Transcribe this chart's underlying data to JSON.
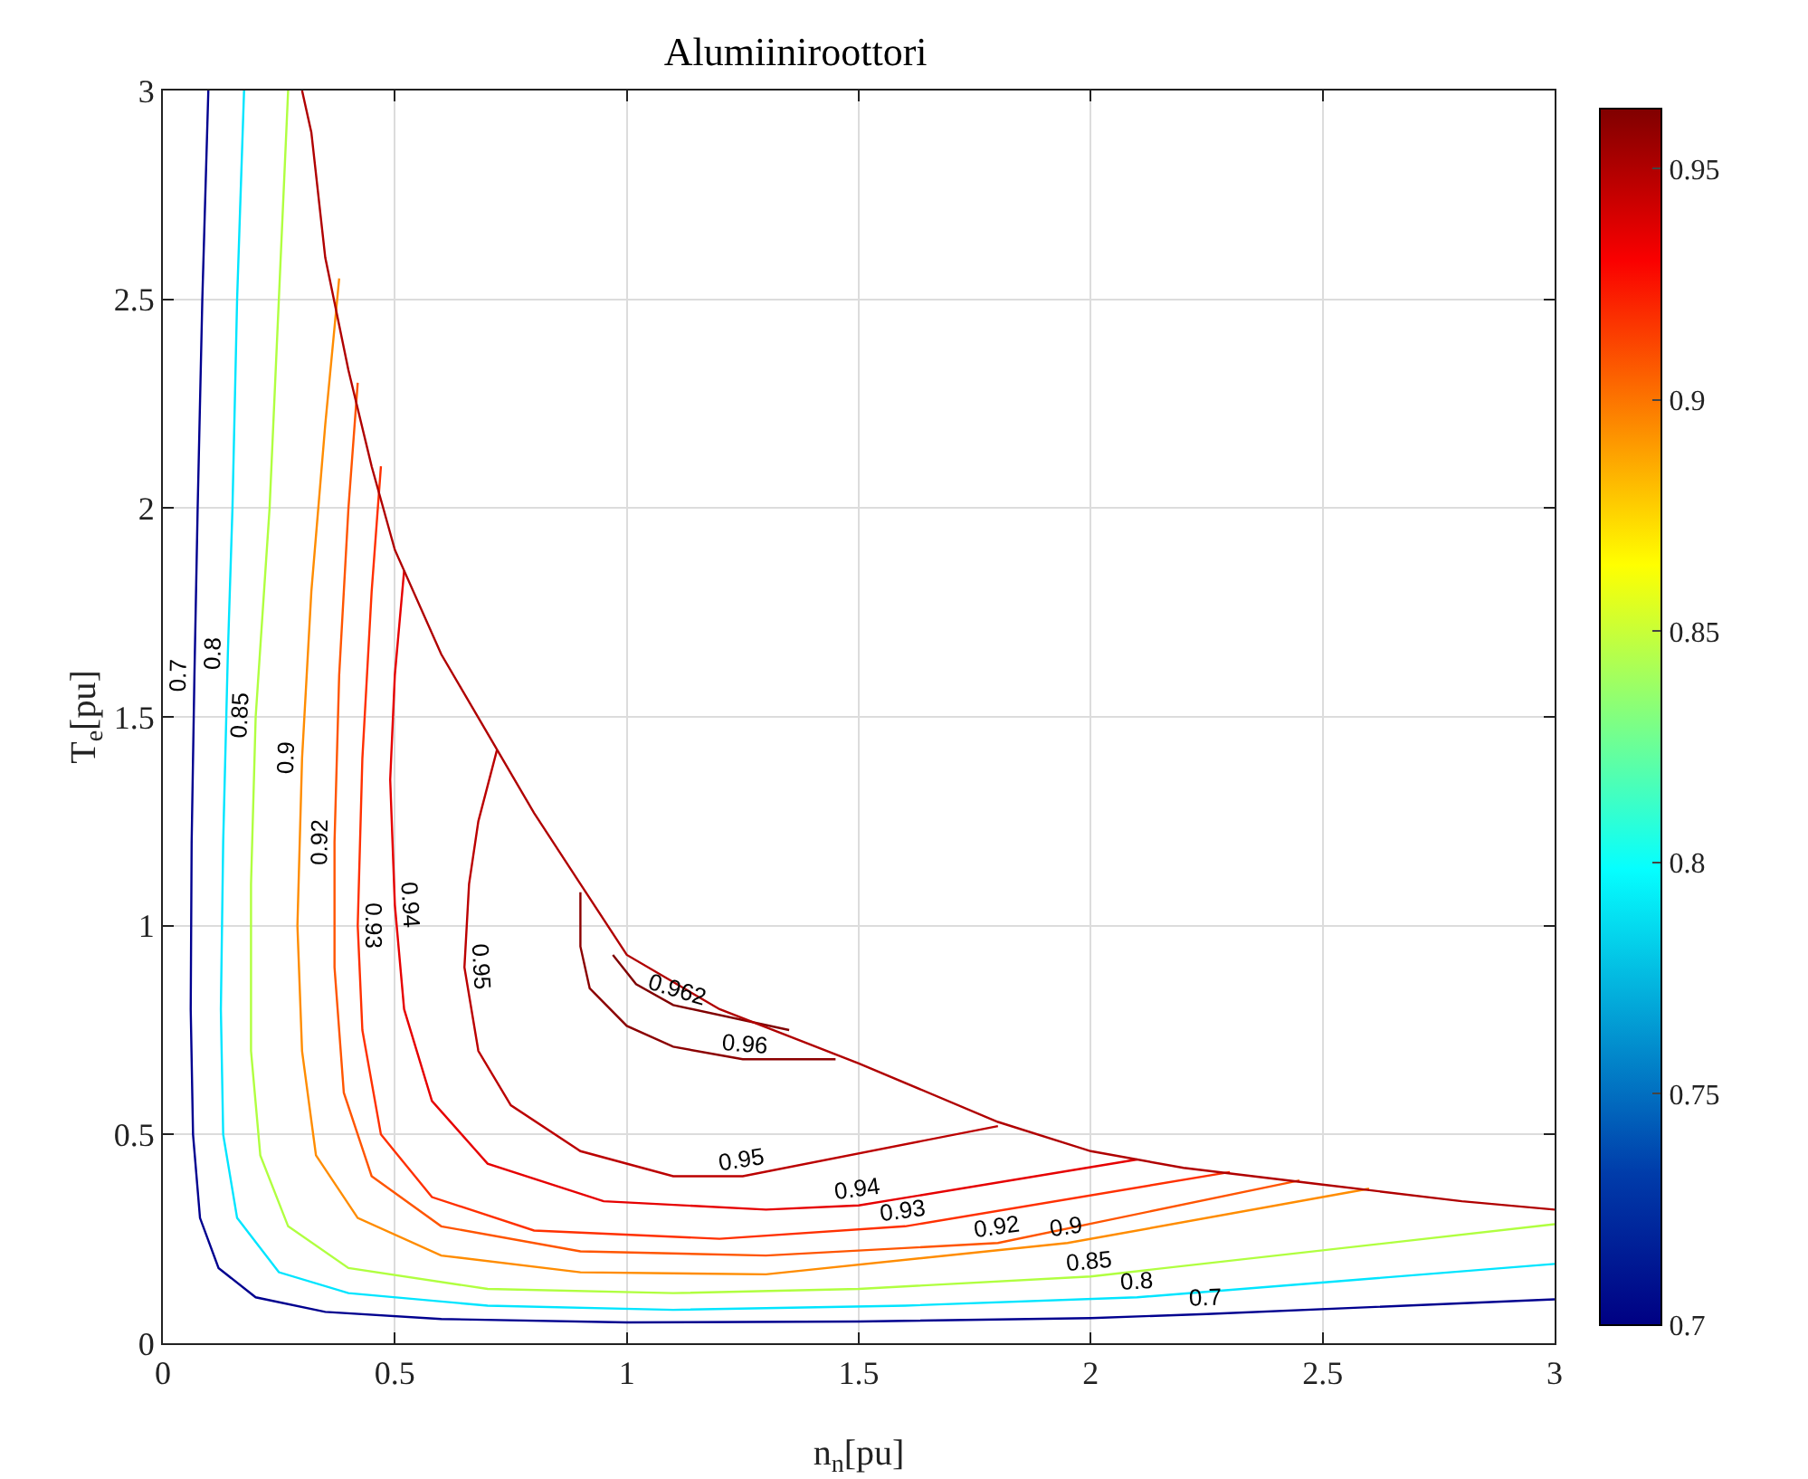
{
  "chart_data": {
    "type": "line",
    "title": "Alumiiniroottori",
    "xlabel": "n$_{n}$[pu]",
    "ylabel": "T$_{e}$[pu]",
    "xlim": [
      0,
      3
    ],
    "xticks": [
      0,
      0.5,
      1,
      1.5,
      2,
      2.5,
      3
    ],
    "ylim": [
      0,
      3
    ],
    "yticks": [
      0,
      0.5,
      1,
      1.5,
      2,
      2.5,
      3
    ],
    "clim": [
      0.7,
      0.963
    ],
    "cticks": [
      0.7,
      0.75,
      0.8,
      0.85,
      0.9,
      0.95
    ],
    "grid": true,
    "legend": false,
    "marker": "none",
    "series": [
      {
        "name": "0.7",
        "color": "#00008f",
        "x": [
          0.098,
          0.085,
          0.075,
          0.068,
          0.062,
          0.06,
          0.065,
          0.08,
          0.12,
          0.2,
          0.35,
          0.6,
          1,
          1.5,
          2,
          2.25,
          3
        ],
        "values": [
          3,
          2.5,
          2,
          1.6,
          1.2,
          0.8,
          0.5,
          0.3,
          0.18,
          0.11,
          0.075,
          0.058,
          0.05,
          0.052,
          0.06,
          0.07,
          0.105
        ]
      },
      {
        "name": "0.8",
        "color": "#00e5ff",
        "x": [
          0.175,
          0.16,
          0.15,
          0.14,
          0.13,
          0.125,
          0.13,
          0.16,
          0.25,
          0.4,
          0.7,
          1.1,
          1.6,
          2.1,
          3
        ],
        "values": [
          3,
          2.5,
          2,
          1.65,
          1.2,
          0.8,
          0.5,
          0.3,
          0.17,
          0.12,
          0.09,
          0.08,
          0.09,
          0.11,
          0.19
        ]
      },
      {
        "name": "0.85",
        "color": "#b0ff40",
        "x": [
          0.27,
          0.25,
          0.23,
          0.2,
          0.19,
          0.19,
          0.21,
          0.27,
          0.4,
          0.7,
          1.1,
          1.5,
          2,
          3
        ],
        "values": [
          3,
          2.5,
          2,
          1.5,
          1.1,
          0.7,
          0.45,
          0.28,
          0.18,
          0.13,
          0.12,
          0.13,
          0.16,
          0.285
        ]
      },
      {
        "name": "0.9",
        "color": "#ff8c00",
        "x": [
          0.38,
          0.35,
          0.32,
          0.3,
          0.29,
          0.3,
          0.33,
          0.42,
          0.6,
          0.9,
          1.3,
          1.95,
          2.6
        ],
        "values": [
          2.55,
          2.2,
          1.8,
          1.4,
          1,
          0.7,
          0.45,
          0.3,
          0.21,
          0.17,
          0.165,
          0.24,
          0.37
        ]
      },
      {
        "name": "0.92",
        "color": "#ff5500",
        "x": [
          0.42,
          0.4,
          0.38,
          0.37,
          0.37,
          0.39,
          0.45,
          0.6,
          0.9,
          1.3,
          1.8,
          2.45
        ],
        "values": [
          2.3,
          2,
          1.6,
          1.2,
          0.9,
          0.6,
          0.4,
          0.28,
          0.22,
          0.21,
          0.24,
          0.39
        ]
      },
      {
        "name": "0.93",
        "color": "#ff3000",
        "x": [
          0.47,
          0.45,
          0.43,
          0.42,
          0.43,
          0.47,
          0.58,
          0.8,
          1.2,
          1.6,
          2.3
        ],
        "values": [
          2.1,
          1.8,
          1.4,
          1,
          0.75,
          0.5,
          0.35,
          0.27,
          0.25,
          0.28,
          0.41
        ]
      },
      {
        "name": "0.94",
        "color": "#e60000",
        "x": [
          0.52,
          0.5,
          0.49,
          0.5,
          0.52,
          0.58,
          0.7,
          0.95,
          1.3,
          1.5,
          2.1
        ],
        "values": [
          1.85,
          1.6,
          1.35,
          1.05,
          0.8,
          0.58,
          0.43,
          0.34,
          0.32,
          0.33,
          0.44
        ]
      },
      {
        "name": "0.95",
        "color": "#bb0000",
        "x": [
          0.72,
          0.68,
          0.66,
          0.65,
          0.68,
          0.75,
          0.9,
          1.1,
          1.25,
          1.8
        ],
        "values": [
          1.42,
          1.25,
          1.1,
          0.9,
          0.7,
          0.57,
          0.46,
          0.4,
          0.4,
          0.52
        ]
      },
      {
        "name": "0.96",
        "color": "#8b0000",
        "x": [
          0.9,
          0.9,
          0.92,
          1,
          1.1,
          1.25,
          1.45
        ],
        "values": [
          1.08,
          0.95,
          0.85,
          0.76,
          0.71,
          0.68,
          0.68
        ]
      },
      {
        "name": "0.962",
        "color": "#800000",
        "x": [
          0.97,
          1.02,
          1.1,
          1.35
        ],
        "values": [
          0.93,
          0.86,
          0.81,
          0.75
        ]
      },
      {
        "color": "#b00000",
        "x": [
          0.3,
          0.32,
          0.35,
          0.4,
          0.45,
          0.5,
          0.6,
          0.7,
          0.8,
          0.9,
          1,
          1.2,
          1.5,
          1.8,
          2,
          2.2,
          2.5,
          2.8,
          3
        ],
        "values": [
          3,
          2.9,
          2.6,
          2.33,
          2.1,
          1.9,
          1.65,
          1.46,
          1.27,
          1.1,
          0.93,
          0.8,
          0.67,
          0.53,
          0.46,
          0.42,
          0.38,
          0.34,
          0.32
        ]
      }
    ]
  }
}
